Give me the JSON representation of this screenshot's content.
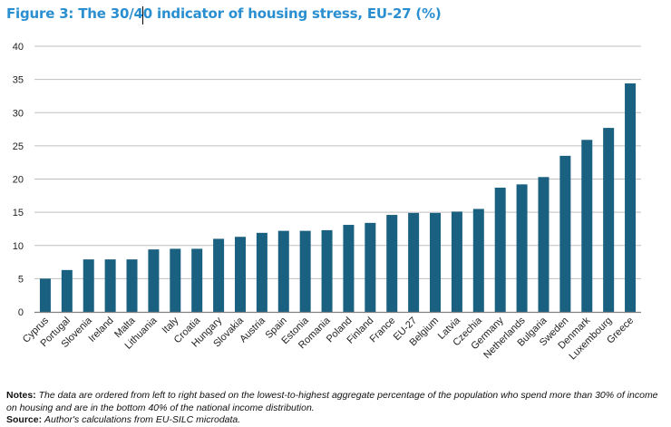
{
  "figure": {
    "title": "Figure 3: The 30/40 indicator of housing stress, EU-27 (%)",
    "notes_label": "Notes:",
    "notes_text": "The data are ordered from left to right based on the lowest-to-highest aggregate percentage of the population who spend more than 30% of income on housing and are in the bottom 40% of the national income distribution.",
    "source_label": "Source:",
    "source_text": "Author's calculations from EU-SILC microdata."
  },
  "colors": {
    "title": "#2a8fd0",
    "bar": "#1a6080",
    "grid": "#bfbfbf",
    "axis": "#7f7f7f"
  },
  "chart_data": {
    "type": "bar",
    "title": "The 30/40 indicator of housing stress, EU-27 (%)",
    "xlabel": "",
    "ylabel": "",
    "ylim": [
      0,
      40
    ],
    "yticks": [
      0,
      5,
      10,
      15,
      20,
      25,
      30,
      35,
      40
    ],
    "grid": true,
    "legend": "none",
    "categories": [
      "Cyprus",
      "Portugal",
      "Slovenia",
      "Ireland",
      "Malta",
      "Lithuania",
      "Italy",
      "Croatia",
      "Hungary",
      "Slovakia",
      "Austria",
      "Spain",
      "Estonia",
      "Romania",
      "Poland",
      "Finland",
      "France",
      "EU-27",
      "Belgium",
      "Latvia",
      "Czechia",
      "Germany",
      "Netherlands",
      "Bulgaria",
      "Sweden",
      "Denmark",
      "Luxembourg",
      "Greece"
    ],
    "values": [
      5.0,
      6.3,
      7.9,
      7.9,
      7.9,
      9.4,
      9.5,
      9.5,
      11.0,
      11.3,
      11.9,
      12.2,
      12.2,
      12.3,
      13.1,
      13.4,
      14.6,
      14.9,
      14.9,
      15.1,
      15.5,
      18.7,
      19.2,
      20.3,
      23.5,
      25.9,
      27.7,
      34.4
    ]
  }
}
